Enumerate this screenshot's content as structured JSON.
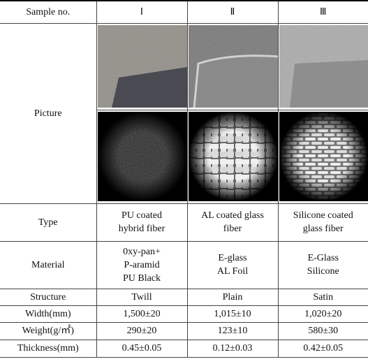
{
  "table": {
    "header": [
      "Sample no.",
      "Ⅰ",
      "Ⅱ",
      "Ⅲ"
    ],
    "picture_label": "Picture",
    "rows": [
      [
        "Type",
        [
          "PU coated",
          "hybrid fiber"
        ],
        [
          "AL coated glass",
          "fiber"
        ],
        [
          "Silicone coated",
          "glass fiber"
        ]
      ],
      [
        "Material",
        [
          "0xy-pan+",
          "P-aramid",
          "PU Black"
        ],
        [
          "E-glass",
          "AL Foil"
        ],
        [
          "E-Glass",
          "Silicone"
        ]
      ],
      [
        "Structure",
        [
          "Twill"
        ],
        [
          "Plain"
        ],
        [
          "Satin"
        ]
      ],
      [
        "Width(mm)",
        [
          "1,500±20"
        ],
        [
          "1,015±10"
        ],
        [
          "1,020±20"
        ]
      ],
      [
        "Weight(g/㎡)",
        [
          "290±20"
        ],
        [
          "123±10"
        ],
        [
          "580±30"
        ]
      ],
      [
        "Thickness(mm)",
        [
          "0.45±0.05"
        ],
        [
          "0.12±0.03"
        ],
        [
          "0.42±0.05"
        ]
      ]
    ]
  }
}
